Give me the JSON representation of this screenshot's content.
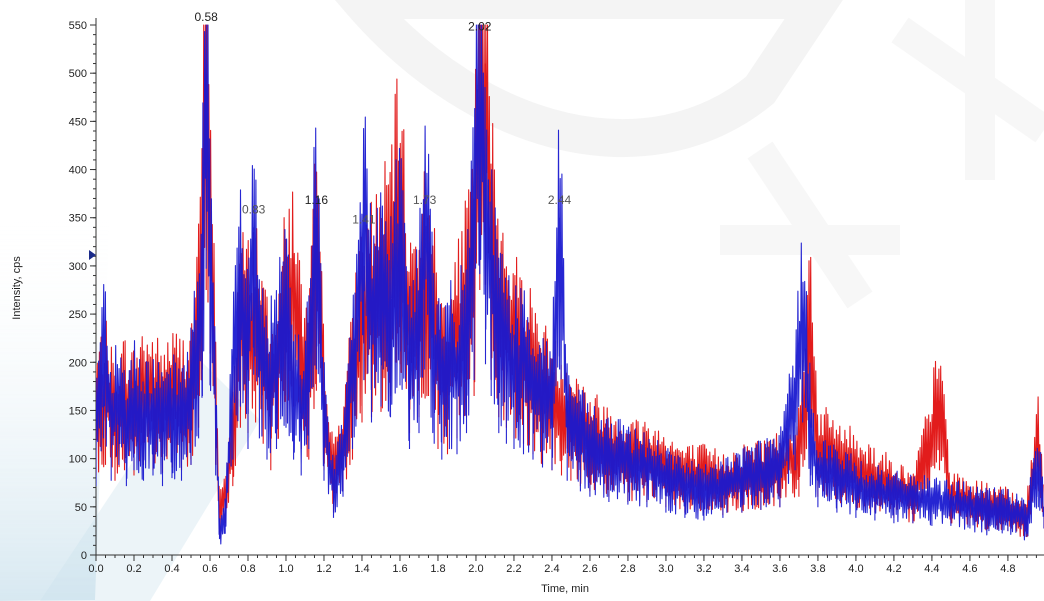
{
  "chart_data": {
    "type": "line",
    "title": "",
    "xlabel": "Time, min",
    "ylabel": "Intensity, cps",
    "xlim": [
      0.0,
      4.99
    ],
    "ylim": [
      0,
      550
    ],
    "xticks": [
      "0.0",
      "0.2",
      "0.4",
      "0.6",
      "0.8",
      "1.0",
      "1.2",
      "1.4",
      "1.6",
      "1.8",
      "2.0",
      "2.2",
      "2.4",
      "2.6",
      "2.8",
      "3.0",
      "3.2",
      "3.4",
      "3.6",
      "3.8",
      "4.0",
      "4.2",
      "4.4",
      "4.6",
      "4.8"
    ],
    "yticks": [
      "0",
      "50",
      "100",
      "150",
      "200",
      "250",
      "300",
      "350",
      "400",
      "450",
      "500",
      "550"
    ],
    "grid": false,
    "legend": "none",
    "peak_labels": [
      {
        "text": "0.58",
        "x": 0.58,
        "y": 550
      },
      {
        "text": "0.83",
        "x": 0.83,
        "y": 350
      },
      {
        "text": "1.16",
        "x": 1.16,
        "y": 360
      },
      {
        "text": "1.41",
        "x": 1.41,
        "y": 340
      },
      {
        "text": "1.73",
        "x": 1.73,
        "y": 360
      },
      {
        "text": "2.02",
        "x": 2.02,
        "y": 540
      },
      {
        "text": "2.44",
        "x": 2.44,
        "y": 360
      }
    ],
    "series": [
      {
        "color": "#e01010",
        "points": [
          [
            0.0,
            150
          ],
          [
            0.05,
            170
          ],
          [
            0.1,
            140
          ],
          [
            0.15,
            160
          ],
          [
            0.2,
            150
          ],
          [
            0.25,
            170
          ],
          [
            0.3,
            160
          ],
          [
            0.35,
            155
          ],
          [
            0.4,
            165
          ],
          [
            0.45,
            160
          ],
          [
            0.5,
            170
          ],
          [
            0.54,
            240
          ],
          [
            0.56,
            350
          ],
          [
            0.58,
            500
          ],
          [
            0.6,
            380
          ],
          [
            0.63,
            170
          ],
          [
            0.65,
            40
          ],
          [
            0.68,
            60
          ],
          [
            0.72,
            130
          ],
          [
            0.76,
            240
          ],
          [
            0.8,
            230
          ],
          [
            0.84,
            250
          ],
          [
            0.88,
            210
          ],
          [
            0.92,
            160
          ],
          [
            0.96,
            220
          ],
          [
            1.0,
            250
          ],
          [
            1.04,
            280
          ],
          [
            1.08,
            200
          ],
          [
            1.12,
            180
          ],
          [
            1.16,
            310
          ],
          [
            1.2,
            160
          ],
          [
            1.25,
            80
          ],
          [
            1.3,
            120
          ],
          [
            1.35,
            180
          ],
          [
            1.4,
            250
          ],
          [
            1.45,
            260
          ],
          [
            1.5,
            270
          ],
          [
            1.55,
            300
          ],
          [
            1.6,
            360
          ],
          [
            1.65,
            230
          ],
          [
            1.7,
            260
          ],
          [
            1.75,
            300
          ],
          [
            1.8,
            200
          ],
          [
            1.85,
            190
          ],
          [
            1.9,
            220
          ],
          [
            1.95,
            260
          ],
          [
            1.99,
            300
          ],
          [
            2.02,
            500
          ],
          [
            2.05,
            510
          ],
          [
            2.08,
            330
          ],
          [
            2.12,
            260
          ],
          [
            2.16,
            240
          ],
          [
            2.2,
            220
          ],
          [
            2.25,
            210
          ],
          [
            2.3,
            190
          ],
          [
            2.35,
            170
          ],
          [
            2.4,
            160
          ],
          [
            2.45,
            150
          ],
          [
            2.5,
            140
          ],
          [
            2.55,
            130
          ],
          [
            2.6,
            120
          ],
          [
            2.7,
            110
          ],
          [
            2.8,
            100
          ],
          [
            2.9,
            100
          ],
          [
            3.0,
            90
          ],
          [
            3.1,
            80
          ],
          [
            3.2,
            80
          ],
          [
            3.3,
            75
          ],
          [
            3.4,
            80
          ],
          [
            3.5,
            85
          ],
          [
            3.6,
            90
          ],
          [
            3.7,
            110
          ],
          [
            3.76,
            240
          ],
          [
            3.8,
            110
          ],
          [
            3.9,
            100
          ],
          [
            4.0,
            90
          ],
          [
            4.1,
            80
          ],
          [
            4.2,
            70
          ],
          [
            4.3,
            60
          ],
          [
            4.38,
            110
          ],
          [
            4.44,
            160
          ],
          [
            4.5,
            60
          ],
          [
            4.6,
            55
          ],
          [
            4.7,
            50
          ],
          [
            4.8,
            45
          ],
          [
            4.9,
            40
          ],
          [
            4.96,
            120
          ],
          [
            4.99,
            50
          ]
        ]
      },
      {
        "color": "#1a1ad0",
        "points": [
          [
            0.0,
            130
          ],
          [
            0.04,
            220
          ],
          [
            0.08,
            140
          ],
          [
            0.12,
            170
          ],
          [
            0.16,
            130
          ],
          [
            0.2,
            160
          ],
          [
            0.25,
            140
          ],
          [
            0.3,
            150
          ],
          [
            0.35,
            130
          ],
          [
            0.4,
            145
          ],
          [
            0.45,
            140
          ],
          [
            0.5,
            170
          ],
          [
            0.54,
            220
          ],
          [
            0.56,
            300
          ],
          [
            0.58,
            540
          ],
          [
            0.6,
            320
          ],
          [
            0.63,
            150
          ],
          [
            0.65,
            30
          ],
          [
            0.68,
            40
          ],
          [
            0.72,
            180
          ],
          [
            0.76,
            280
          ],
          [
            0.8,
            200
          ],
          [
            0.83,
            340
          ],
          [
            0.86,
            220
          ],
          [
            0.9,
            180
          ],
          [
            0.95,
            200
          ],
          [
            1.0,
            240
          ],
          [
            1.04,
            180
          ],
          [
            1.08,
            150
          ],
          [
            1.12,
            200
          ],
          [
            1.16,
            350
          ],
          [
            1.2,
            140
          ],
          [
            1.25,
            70
          ],
          [
            1.3,
            110
          ],
          [
            1.35,
            200
          ],
          [
            1.41,
            330
          ],
          [
            1.45,
            250
          ],
          [
            1.5,
            280
          ],
          [
            1.55,
            260
          ],
          [
            1.6,
            320
          ],
          [
            1.65,
            200
          ],
          [
            1.7,
            230
          ],
          [
            1.73,
            350
          ],
          [
            1.78,
            210
          ],
          [
            1.82,
            180
          ],
          [
            1.86,
            200
          ],
          [
            1.9,
            190
          ],
          [
            1.95,
            230
          ],
          [
            1.99,
            330
          ],
          [
            2.02,
            530
          ],
          [
            2.05,
            360
          ],
          [
            2.08,
            300
          ],
          [
            2.12,
            230
          ],
          [
            2.16,
            210
          ],
          [
            2.2,
            200
          ],
          [
            2.25,
            190
          ],
          [
            2.3,
            180
          ],
          [
            2.35,
            165
          ],
          [
            2.4,
            160
          ],
          [
            2.44,
            350
          ],
          [
            2.48,
            140
          ],
          [
            2.55,
            120
          ],
          [
            2.6,
            110
          ],
          [
            2.7,
            100
          ],
          [
            2.8,
            95
          ],
          [
            2.9,
            90
          ],
          [
            3.0,
            80
          ],
          [
            3.1,
            70
          ],
          [
            3.2,
            65
          ],
          [
            3.3,
            70
          ],
          [
            3.4,
            80
          ],
          [
            3.5,
            85
          ],
          [
            3.6,
            90
          ],
          [
            3.68,
            160
          ],
          [
            3.72,
            250
          ],
          [
            3.76,
            130
          ],
          [
            3.8,
            90
          ],
          [
            3.9,
            80
          ],
          [
            4.0,
            70
          ],
          [
            4.1,
            65
          ],
          [
            4.2,
            60
          ],
          [
            4.3,
            60
          ],
          [
            4.4,
            55
          ],
          [
            4.5,
            55
          ],
          [
            4.6,
            50
          ],
          [
            4.7,
            45
          ],
          [
            4.8,
            45
          ],
          [
            4.9,
            40
          ],
          [
            4.96,
            90
          ],
          [
            4.99,
            50
          ]
        ]
      }
    ]
  }
}
